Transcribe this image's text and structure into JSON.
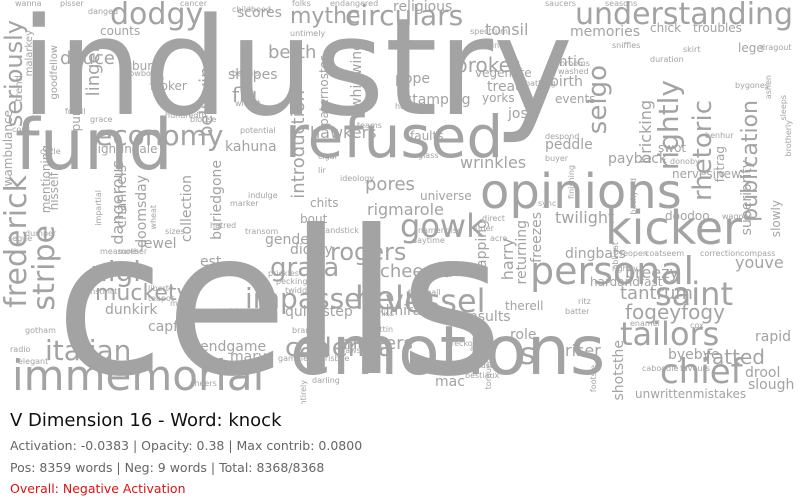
{
  "title": "V Dimension 16 - Word: knock",
  "stats": {
    "line1": "Activation: -0.0383 | Opacity: 0.38 | Max contrib: 0.0800",
    "line2": "Pos: 8359 words | Neg: 9 words | Total: 8368/8368"
  },
  "overall": {
    "text": "Overall: Negative Activation",
    "color": "#dd1111"
  },
  "cloud": {
    "color": "#a3a3a3",
    "words": [
      {
        "t": "cells"
      },
      {
        "t": "industry"
      },
      {
        "t": "emotions"
      },
      {
        "t": "immemorial"
      },
      {
        "t": "refused"
      },
      {
        "t": "fund"
      },
      {
        "t": "opinions"
      },
      {
        "t": "kicker"
      },
      {
        "t": "personal"
      },
      {
        "t": "understanding"
      },
      {
        "t": "circulars"
      },
      {
        "t": "tailors"
      },
      {
        "t": "saint"
      },
      {
        "t": "chief"
      },
      {
        "t": "economy"
      },
      {
        "t": "dodgy"
      },
      {
        "t": "gowk"
      },
      {
        "t": "helm"
      },
      {
        "t": "vessel"
      },
      {
        "t": "impasse"
      },
      {
        "t": "italian"
      },
      {
        "t": "frederick"
      },
      {
        "t": "stripe"
      },
      {
        "t": "seriously"
      },
      {
        "t": "nigh"
      },
      {
        "t": "muckety"
      },
      {
        "t": "cadenza"
      },
      {
        "t": "rogers"
      },
      {
        "t": "grata"
      },
      {
        "t": "mythe"
      },
      {
        "t": "berth"
      },
      {
        "t": "selgo"
      },
      {
        "t": "rightly"
      },
      {
        "t": "rhetoric"
      },
      {
        "t": "publication"
      },
      {
        "t": "masters"
      },
      {
        "t": "fatted"
      },
      {
        "t": "fogeyfogy"
      },
      {
        "t": "tantrum"
      },
      {
        "t": "cheered"
      },
      {
        "t": "pores"
      },
      {
        "t": "wrinkles"
      },
      {
        "t": "introduction"
      },
      {
        "t": "broker"
      },
      {
        "t": "flu"
      },
      {
        "t": "believing"
      },
      {
        "t": "linger"
      },
      {
        "t": "deuce"
      },
      {
        "t": "dangerous"
      },
      {
        "t": "hawkers"
      },
      {
        "t": "rigmarole"
      },
      {
        "t": "breezy"
      },
      {
        "t": "youve"
      },
      {
        "t": "unwrittenmistakes"
      },
      {
        "t": "riser"
      },
      {
        "t": "twilight"
      },
      {
        "t": "bricking"
      },
      {
        "t": "scores"
      },
      {
        "t": "tonsil"
      },
      {
        "t": "memories"
      },
      {
        "t": "stamping"
      },
      {
        "t": "nightingale"
      },
      {
        "t": "endgame"
      },
      {
        "t": "mary"
      },
      {
        "t": "admirable"
      },
      {
        "t": "quickstep"
      },
      {
        "t": "gender"
      },
      {
        "t": "diddly"
      },
      {
        "t": "harry"
      },
      {
        "t": "insults"
      },
      {
        "t": "dunkirk"
      },
      {
        "t": "capful"
      },
      {
        "t": "channels"
      },
      {
        "t": "doomsday"
      },
      {
        "t": "kahuna"
      },
      {
        "t": "buriedgone"
      },
      {
        "t": "collection"
      },
      {
        "t": "jewel"
      },
      {
        "t": "est"
      },
      {
        "t": "slowly"
      },
      {
        "t": "superiority"
      },
      {
        "t": "nervesinew"
      },
      {
        "t": "payback"
      },
      {
        "t": "swot"
      },
      {
        "t": "peddle"
      },
      {
        "t": "birth"
      },
      {
        "t": "events"
      },
      {
        "t": "antic"
      },
      {
        "t": "josé"
      },
      {
        "t": "tread"
      },
      {
        "t": "yorks"
      },
      {
        "t": "vegemite"
      },
      {
        "t": "pope"
      },
      {
        "t": "whirlwind"
      },
      {
        "t": "paternoster"
      },
      {
        "t": "religious"
      },
      {
        "t": "rapid"
      },
      {
        "t": "drool"
      },
      {
        "t": "slough"
      },
      {
        "t": "byebye"
      },
      {
        "t": "shotsthe"
      },
      {
        "t": "mac"
      },
      {
        "t": "role"
      },
      {
        "t": "therell"
      },
      {
        "t": "returning"
      },
      {
        "t": "flapping"
      },
      {
        "t": "freezes"
      },
      {
        "t": "dingbats"
      },
      {
        "t": "doodoo"
      },
      {
        "t": "chick"
      },
      {
        "t": "troubles"
      },
      {
        "t": "lege"
      },
      {
        "t": "punishment"
      },
      {
        "t": "goodfellow"
      },
      {
        "t": "malarkey"
      },
      {
        "t": "trend"
      },
      {
        "t": "burly"
      },
      {
        "t": "looker"
      },
      {
        "t": "jib"
      },
      {
        "t": "shapes"
      },
      {
        "t": "mentioning"
      },
      {
        "t": "hisself"
      },
      {
        "t": "wambulance"
      },
      {
        "t": "counts"
      },
      {
        "t": "faults"
      },
      {
        "t": "bout"
      },
      {
        "t": "chits"
      },
      {
        "t": "universe"
      },
      {
        "t": "hardandfast"
      },
      {
        "t": "fatrag"
      },
      {
        "t": "s"
      },
      {
        "t": "hundredth"
      },
      {
        "t": "blouse"
      },
      {
        "t": "potential"
      },
      {
        "t": "cigar"
      },
      {
        "t": "lir"
      },
      {
        "t": "ideology"
      },
      {
        "t": "impartial"
      },
      {
        "t": "segue"
      },
      {
        "t": "cycle"
      },
      {
        "t": "dumper"
      },
      {
        "t": "gotham"
      },
      {
        "t": "radio"
      },
      {
        "t": "elegant"
      },
      {
        "t": "cheers"
      },
      {
        "t": "darling"
      },
      {
        "t": "laws"
      },
      {
        "t": "reckoning"
      },
      {
        "t": "aspen"
      },
      {
        "t": "sawdust"
      },
      {
        "t": "bestiaux"
      },
      {
        "t": "torqued"
      },
      {
        "t": "footsie"
      },
      {
        "t": "caboodle"
      },
      {
        "t": "favours"
      },
      {
        "t": "correction"
      },
      {
        "t": "compass"
      },
      {
        "t": "wagons"
      },
      {
        "t": "reopen"
      },
      {
        "t": "coatseem"
      },
      {
        "t": "enamel"
      },
      {
        "t": "cox"
      },
      {
        "t": "ritz"
      },
      {
        "t": "batter"
      },
      {
        "t": "sheep"
      },
      {
        "t": "cuttin"
      },
      {
        "t": "entirely"
      },
      {
        "t": "brandon"
      },
      {
        "t": "teapot"
      },
      {
        "t": "liberty"
      },
      {
        "t": "spanish"
      },
      {
        "t": "mallet"
      },
      {
        "t": "instinct"
      },
      {
        "t": "measures"
      },
      {
        "t": "mother"
      },
      {
        "t": "pecking"
      },
      {
        "t": "twiddling"
      },
      {
        "t": "prickles"
      },
      {
        "t": "transom"
      },
      {
        "t": "indulge"
      },
      {
        "t": "barrels"
      },
      {
        "t": "childhood"
      },
      {
        "t": "cowboy"
      },
      {
        "t": "wicket"
      },
      {
        "t": "untimely"
      },
      {
        "t": "spectrum"
      },
      {
        "t": "laying"
      },
      {
        "t": "bathing"
      },
      {
        "t": "washed"
      },
      {
        "t": "brooms"
      },
      {
        "t": "sniffles"
      },
      {
        "t": "duration"
      },
      {
        "t": "skirt"
      },
      {
        "t": "bygones"
      },
      {
        "t": "dragout"
      },
      {
        "t": "ashen"
      },
      {
        "t": "benhur"
      },
      {
        "t": "sleeps"
      },
      {
        "t": "brotherly"
      },
      {
        "t": "despond"
      },
      {
        "t": "buyer"
      },
      {
        "t": "finishing"
      },
      {
        "t": "sync"
      },
      {
        "t": "obligat"
      },
      {
        "t": "backyard"
      },
      {
        "t": "donoby"
      },
      {
        "t": "rightly"
      },
      {
        "t": "direct"
      },
      {
        "t": "hurler"
      },
      {
        "t": "acre"
      },
      {
        "t": "namenoise"
      },
      {
        "t": "daytime"
      },
      {
        "t": "hardball"
      },
      {
        "t": "hitniss"
      },
      {
        "t": "standstick"
      },
      {
        "t": "horribles"
      },
      {
        "t": "teams"
      },
      {
        "t": "folks"
      },
      {
        "t": "endangered"
      },
      {
        "t": "cancer"
      },
      {
        "t": "saucers"
      },
      {
        "t": "seasons"
      },
      {
        "t": "pisser"
      },
      {
        "t": "danged"
      },
      {
        "t": "wanna"
      },
      {
        "t": "sizes"
      },
      {
        "t": "wheat"
      },
      {
        "t": "fossil"
      },
      {
        "t": "grace"
      },
      {
        "t": "cops"
      },
      {
        "t": "hatred"
      },
      {
        "t": "marker"
      },
      {
        "t": "gamble"
      },
      {
        "t": "frisbee"
      },
      {
        "t": "glass"
      }
    ]
  }
}
